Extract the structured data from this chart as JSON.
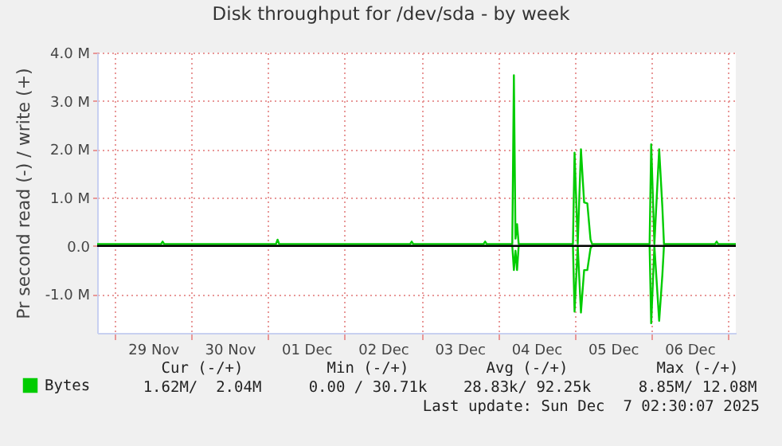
{
  "chart_data": {
    "type": "line",
    "title": "Disk throughput for /dev/sda - by week",
    "ylabel": "Pr second read (-) / write (+)",
    "x": [
      "2025-11-28T18:30",
      "2025-11-29T14:30",
      "2025-11-29T15:00",
      "2025-11-29T15:30",
      "2025-12-01T02:30",
      "2025-12-01T03:00",
      "2025-12-01T03:30",
      "2025-12-02T20:30",
      "2025-12-02T21:00",
      "2025-12-02T21:30",
      "2025-12-03T19:30",
      "2025-12-03T20:00",
      "2025-12-03T20:30",
      "2025-12-04T04:30",
      "2025-12-04T05:00",
      "2025-12-04T05:30",
      "2025-12-04T06:00",
      "2025-12-04T06:30",
      "2025-12-04T23:30",
      "2025-12-05T00:00",
      "2025-12-05T01:00",
      "2025-12-05T02:00",
      "2025-12-05T03:00",
      "2025-12-05T04:00",
      "2025-12-05T05:00",
      "2025-12-05T05:30",
      "2025-12-05T23:30",
      "2025-12-06T00:00",
      "2025-12-06T01:00",
      "2025-12-06T02:30",
      "2025-12-06T03:30",
      "2025-12-06T04:00",
      "2025-12-06T20:00",
      "2025-12-06T20:30",
      "2025-12-06T21:00",
      "2025-12-07T02:30"
    ],
    "series": [
      {
        "name": "Bytes",
        "color": "#00cc00",
        "values": [
          40000,
          40000,
          90000,
          40000,
          40000,
          130000,
          40000,
          40000,
          90000,
          40000,
          40000,
          90000,
          40000,
          40000,
          3530000,
          150000,
          450000,
          40000,
          40000,
          1930000,
          40000,
          2000000,
          900000,
          880000,
          130000,
          40000,
          40000,
          2100000,
          40000,
          2000000,
          800000,
          40000,
          40000,
          90000,
          40000,
          40000
        ]
      },
      {
        "color": "#00cc00",
        "values": [
          0,
          0,
          0,
          0,
          0,
          0,
          0,
          0,
          0,
          0,
          0,
          0,
          0,
          0,
          -500000,
          -100000,
          -500000,
          0,
          0,
          -1360000,
          0,
          -1380000,
          -500000,
          -500000,
          -50000,
          0,
          0,
          -1600000,
          0,
          -1550000,
          -600000,
          0,
          0,
          0,
          0,
          0
        ]
      }
    ],
    "xlim": [
      "2025-11-28T18:30",
      "2025-12-07T02:30"
    ],
    "xticks": [
      {
        "value": "2025-11-29T00:00",
        "label": null
      },
      {
        "value": "2025-11-29T12:00",
        "label": "29 Nov"
      },
      {
        "value": "2025-11-30T00:00",
        "label": null
      },
      {
        "value": "2025-11-30T12:00",
        "label": "30 Nov"
      },
      {
        "value": "2025-12-01T00:00",
        "label": null
      },
      {
        "value": "2025-12-01T12:00",
        "label": "01 Dec"
      },
      {
        "value": "2025-12-02T00:00",
        "label": null
      },
      {
        "value": "2025-12-02T12:00",
        "label": "02 Dec"
      },
      {
        "value": "2025-12-03T00:00",
        "label": null
      },
      {
        "value": "2025-12-03T12:00",
        "label": "03 Dec"
      },
      {
        "value": "2025-12-04T00:00",
        "label": null
      },
      {
        "value": "2025-12-04T12:00",
        "label": "04 Dec"
      },
      {
        "value": "2025-12-05T00:00",
        "label": null
      },
      {
        "value": "2025-12-05T12:00",
        "label": "05 Dec"
      },
      {
        "value": "2025-12-06T00:00",
        "label": null
      },
      {
        "value": "2025-12-06T12:00",
        "label": "06 Dec"
      },
      {
        "value": "2025-12-07T00:00",
        "label": null
      }
    ],
    "ylim": [
      -1800000,
      4000000
    ],
    "yticks": [
      {
        "value": -1000000,
        "label": "-1.0 M"
      },
      {
        "value": 0,
        "label": "0.0"
      },
      {
        "value": 1000000,
        "label": "1.0 M"
      },
      {
        "value": 2000000,
        "label": "2.0 M"
      },
      {
        "value": 3000000,
        "label": "3.0 M"
      },
      {
        "value": 4000000,
        "label": "4.0 M"
      }
    ],
    "grid": true,
    "legend": "bottom left",
    "line_style": "solid",
    "marker": "none",
    "ref_lines": [
      {
        "axis": "y",
        "value": 0,
        "color": "#000000"
      }
    ],
    "annotations": [
      "Cur (-/+)",
      "Min (-/+)",
      "Avg (-/+)",
      "Max (-/+)",
      "1.62M/  2.04M",
      "0.00 / 30.71k",
      "28.83k/ 92.25k",
      "8.85M/ 12.08M",
      "Last update: Sun Dec  7 02:30:07 2025"
    ]
  }
}
